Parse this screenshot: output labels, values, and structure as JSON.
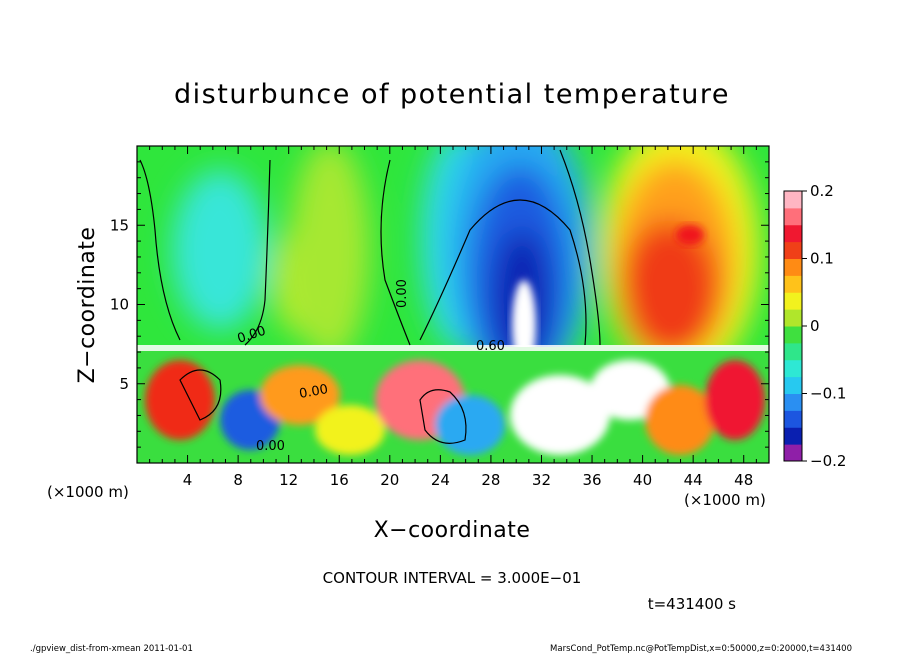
{
  "chart_data": {
    "type": "heatmap",
    "title": "disturbunce of potential temperature",
    "xlabel": "X−coordinate",
    "ylabel": "Z−coordinate",
    "x_unit": "(×1000 m)",
    "y_unit": "(×1000 m)",
    "xlim": [
      0,
      50
    ],
    "ylim": [
      0,
      20
    ],
    "x_ticks": [
      4,
      8,
      12,
      16,
      20,
      24,
      28,
      32,
      36,
      40,
      44,
      48
    ],
    "y_ticks": [
      5,
      10,
      15
    ],
    "colorbar": {
      "vmin": -0.2,
      "vmax": 0.2,
      "ticks": [
        {
          "value": 0.2,
          "label": "0.2"
        },
        {
          "value": 0.1,
          "label": "0.1"
        },
        {
          "value": 0,
          "label": "0"
        },
        {
          "value": -0.1,
          "label": "−0.1"
        },
        {
          "value": -0.2,
          "label": "−0.2"
        }
      ],
      "colors": [
        "#8f1fa8",
        "#0a1fb0",
        "#1c56e0",
        "#2a8ff2",
        "#27c9f0",
        "#2ee8d4",
        "#2fe68a",
        "#3fe03f",
        "#b0e62b",
        "#f2f21e",
        "#ffc21a",
        "#ff8b14",
        "#f04018",
        "#f01830",
        "#ff6f7a",
        "#ffb6c3"
      ]
    },
    "contour_interval_text": "CONTOUR INTERVAL = 3.000E−01",
    "contour_labels": [
      "0.00",
      "0.00",
      "0.00",
      "0.00",
      "0.60"
    ],
    "time_text": "t=431400 s"
  },
  "footer": {
    "left": "./gpview_dist-from-xmean   2011-01-01",
    "right": "MarsCond_PotTemp.nc@PotTempDist,x=0:50000,z=0:20000,t=431400"
  }
}
